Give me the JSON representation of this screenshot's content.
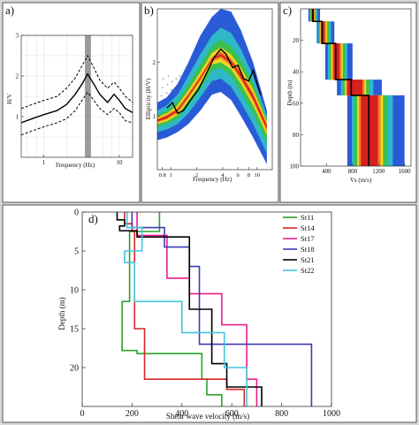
{
  "figure_bg": "#d8d8d8",
  "panels": [
    {
      "id": "a",
      "panel_label": "a)",
      "chart_data": {
        "type": "line",
        "xlabel": "Frequency (Hz)",
        "ylabel": "H/V",
        "x_scale": "log",
        "xlim": [
          0.5,
          15
        ],
        "ylim": [
          0,
          3
        ],
        "x_ticks": [
          1,
          10
        ],
        "y_ticks": [
          1,
          2,
          3
        ],
        "highlight_band_hz": [
          3.5,
          4.2
        ],
        "series": [
          {
            "role": "mean",
            "style": "solid",
            "x": [
              0.5,
              0.7,
              1,
              1.5,
              2,
              2.6,
              3.2,
              3.8,
              4.6,
              5.5,
              7,
              8.5,
              10,
              12,
              15
            ],
            "y": [
              0.85,
              0.95,
              1.05,
              1.15,
              1.3,
              1.55,
              1.8,
              2.05,
              1.8,
              1.55,
              1.35,
              1.55,
              1.4,
              1.2,
              1.1
            ]
          },
          {
            "role": "upper",
            "style": "dashed",
            "x": [
              0.5,
              0.7,
              1,
              1.5,
              2,
              2.6,
              3.2,
              3.8,
              4.6,
              5.5,
              7,
              8.5,
              10,
              12,
              15
            ],
            "y": [
              1.2,
              1.3,
              1.4,
              1.5,
              1.7,
              1.95,
              2.25,
              2.5,
              2.2,
              1.9,
              1.7,
              1.85,
              1.7,
              1.5,
              1.35
            ]
          },
          {
            "role": "lower",
            "style": "dashed",
            "x": [
              0.5,
              0.7,
              1,
              1.5,
              2,
              2.6,
              3.2,
              3.8,
              4.6,
              5.5,
              7,
              8.5,
              10,
              12,
              15
            ],
            "y": [
              0.55,
              0.65,
              0.75,
              0.85,
              0.95,
              1.15,
              1.4,
              1.6,
              1.4,
              1.2,
              1.05,
              1.2,
              1.1,
              0.9,
              0.85
            ]
          }
        ]
      }
    },
    {
      "id": "b",
      "panel_label": "b)",
      "chart_data": {
        "type": "line",
        "xlabel": "Frequency (Hz)",
        "ylabel": "Ellipticity (H/V)",
        "x_scale": "log",
        "xlim": [
          0.7,
          15
        ],
        "ylim": [
          0,
          3
        ],
        "x_ticks": [
          0.8,
          1,
          2,
          4,
          6,
          8,
          10
        ],
        "y_ticks": [
          1,
          2
        ],
        "envelope_bands": [
          {
            "color": "#2a5bd7",
            "upper": [
              1.25,
              1.35,
              1.6,
              2.0,
              2.5,
              2.85,
              3.0,
              2.95,
              2.6,
              2.0,
              1.1
            ],
            "lower": [
              0.55,
              0.6,
              0.7,
              0.85,
              1.1,
              1.4,
              1.45,
              1.3,
              1.0,
              0.6,
              0.1
            ]
          },
          {
            "color": "#2fb8c8",
            "upper": [
              1.1,
              1.2,
              1.4,
              1.75,
              2.15,
              2.5,
              2.65,
              2.55,
              2.25,
              1.75,
              1.0
            ],
            "lower": [
              0.7,
              0.75,
              0.85,
              1.05,
              1.35,
              1.65,
              1.7,
              1.55,
              1.25,
              0.85,
              0.3
            ]
          },
          {
            "color": "#3cc04a",
            "upper": [
              1.02,
              1.1,
              1.28,
              1.58,
              1.95,
              2.3,
              2.42,
              2.3,
              2.05,
              1.6,
              0.95
            ],
            "lower": [
              0.8,
              0.85,
              0.95,
              1.2,
              1.5,
              1.85,
              1.9,
              1.75,
              1.45,
              1.05,
              0.5
            ]
          },
          {
            "color": "#f2d321",
            "upper": [
              0.98,
              1.05,
              1.2,
              1.48,
              1.82,
              2.18,
              2.28,
              2.15,
              1.9,
              1.5,
              0.9
            ],
            "lower": [
              0.85,
              0.9,
              1.02,
              1.28,
              1.6,
              1.96,
              2.0,
              1.87,
              1.6,
              1.2,
              0.65
            ]
          },
          {
            "color": "#f07a20",
            "upper": [
              0.95,
              1.02,
              1.15,
              1.42,
              1.75,
              2.1,
              2.2,
              2.07,
              1.82,
              1.43,
              0.85
            ],
            "lower": [
              0.88,
              0.94,
              1.06,
              1.33,
              1.66,
              2.02,
              2.08,
              1.95,
              1.68,
              1.28,
              0.72
            ]
          },
          {
            "color": "#d42020",
            "upper": [
              0.93,
              1.0,
              1.12,
              1.39,
              1.72,
              2.07,
              2.16,
              2.03,
              1.78,
              1.39,
              0.82
            ],
            "lower": [
              0.9,
              0.96,
              1.09,
              1.36,
              1.69,
              2.05,
              2.12,
              1.99,
              1.72,
              1.32,
              0.76
            ]
          }
        ],
        "envelope_x": [
          0.7,
          0.9,
          1.2,
          1.6,
          2.2,
          3.0,
          3.8,
          5.0,
          6.5,
          9.0,
          13.0
        ],
        "observed_scatter_color": "#a0a0a0",
        "series": [
          {
            "role": "best-model",
            "color": "#000000",
            "x": [
              0.9,
              1.05,
              1.2,
              1.4,
              1.7,
              2.1,
              2.6,
              3.2,
              3.8,
              4.4,
              5.2,
              6.0,
              7.0,
              8.0,
              9.0,
              10.0,
              11.0
            ],
            "y": [
              1.15,
              1.25,
              1.05,
              1.1,
              1.3,
              1.5,
              1.8,
              2.1,
              2.25,
              2.15,
              1.9,
              1.95,
              1.7,
              1.65,
              1.85,
              1.6,
              1.4
            ]
          }
        ]
      }
    },
    {
      "id": "c",
      "panel_label": "c)",
      "chart_data": {
        "type": "line",
        "xlabel": "Vs (m/s)",
        "ylabel": "Depth (m)",
        "xlim": [
          0,
          1700
        ],
        "ylim": [
          100,
          0
        ],
        "x_ticks": [
          400,
          800,
          1200,
          1600
        ],
        "y_ticks": [
          20,
          40,
          60,
          80,
          100
        ],
        "profile_bands": [
          {
            "color": "#2a5bd7",
            "vs_lo": [
              120,
              250,
              380,
              560,
              720
            ],
            "vs_hi": [
              300,
              520,
              800,
              1250,
              1600
            ]
          },
          {
            "color": "#2fb8c8",
            "vs_lo": [
              140,
              270,
              420,
              620,
              790
            ],
            "vs_hi": [
              260,
              470,
              720,
              1120,
              1420
            ]
          },
          {
            "color": "#3cc04a",
            "vs_lo": [
              150,
              285,
              445,
              650,
              830
            ],
            "vs_hi": [
              240,
              440,
              680,
              1060,
              1330
            ]
          },
          {
            "color": "#f2d321",
            "vs_lo": [
              160,
              300,
              470,
              680,
              870
            ],
            "vs_hi": [
              225,
              410,
              650,
              1010,
              1270
            ]
          },
          {
            "color": "#f07a20",
            "vs_lo": [
              165,
              310,
              490,
              700,
              900
            ],
            "vs_hi": [
              215,
              390,
              625,
              980,
              1230
            ]
          },
          {
            "color": "#d42020",
            "vs_lo": [
              170,
              320,
              510,
              720,
              930
            ],
            "vs_hi": [
              205,
              370,
              600,
              950,
              1190
            ]
          }
        ],
        "profile_depths": [
          0,
          8,
          22,
          45,
          55,
          100
        ],
        "series": [
          {
            "role": "best-model",
            "color": "#000000",
            "vs": [
              190,
              190,
              330,
              330,
              540,
              540,
              780,
              780,
              1050,
              1050
            ],
            "depth": [
              0,
              8,
              8,
              22,
              22,
              45,
              45,
              55,
              55,
              100
            ]
          }
        ]
      }
    },
    {
      "id": "d",
      "panel_label": "d)",
      "chart_data": {
        "type": "line",
        "xlabel": "Shear wave velocity (m/s)",
        "ylabel": "Depth (m)",
        "xlim": [
          0,
          1000
        ],
        "ylim": [
          25,
          0
        ],
        "x_ticks": [
          0,
          200,
          400,
          600,
          800,
          1000
        ],
        "y_ticks": [
          0,
          5,
          10,
          15,
          20
        ],
        "legend_position": "top-right",
        "series": [
          {
            "name": "St11",
            "color": "#2ca02c",
            "vs": [
              310,
              310,
              190,
              190,
              160,
              160,
              220,
              220,
              480,
              480,
              500,
              500,
              560,
              560
            ],
            "depth": [
              0,
              2.5,
              2.5,
              11.5,
              11.5,
              17.8,
              17.8,
              18.2,
              18.2,
              21.5,
              21.5,
              23.5,
              23.5,
              25
            ]
          },
          {
            "name": "St14",
            "color": "#d62728",
            "vs": [
              170,
              170,
              200,
              200,
              210,
              210,
              250,
              250,
              580,
              580,
              650,
              650
            ],
            "depth": [
              0,
              1.5,
              1.5,
              2.5,
              2.5,
              15.0,
              15.0,
              21.5,
              21.5,
              22.8,
              22.8,
              25
            ]
          },
          {
            "name": "St17",
            "color": "#e91e8c",
            "vs": [
              220,
              220,
              340,
              340,
              430,
              430,
              560,
              560,
              660,
              660,
              700,
              700
            ],
            "depth": [
              0,
              3.0,
              3.0,
              8.5,
              8.5,
              10.5,
              10.5,
              14.5,
              14.5,
              21.5,
              21.5,
              25
            ]
          },
          {
            "name": "St18",
            "color": "#3b3bb3",
            "vs": [
              200,
              200,
              330,
              330,
              430,
              430,
              470,
              470,
              920,
              920
            ],
            "depth": [
              0,
              2.0,
              2.0,
              4.5,
              4.5,
              7.0,
              7.0,
              17.0,
              17.0,
              25
            ]
          },
          {
            "name": "St21",
            "color": "#000000",
            "vs": [
              140,
              140,
              170,
              170,
              150,
              150,
              220,
              220,
              430,
              430,
              520,
              520,
              580,
              580,
              720,
              720
            ],
            "depth": [
              0,
              1.0,
              1.0,
              1.8,
              1.8,
              2.4,
              2.4,
              3.2,
              3.2,
              12.5,
              12.5,
              19.5,
              19.5,
              22.5,
              22.5,
              25
            ]
          },
          {
            "name": "St22",
            "color": "#45c4de",
            "vs": [
              180,
              180,
              240,
              240,
              170,
              170,
              210,
              210,
              400,
              400,
              570,
              570,
              660,
              660
            ],
            "depth": [
              0,
              2.0,
              2.0,
              5.0,
              5.0,
              6.5,
              6.5,
              11.5,
              11.5,
              15.5,
              15.5,
              20.0,
              20.0,
              25
            ]
          }
        ]
      }
    }
  ]
}
